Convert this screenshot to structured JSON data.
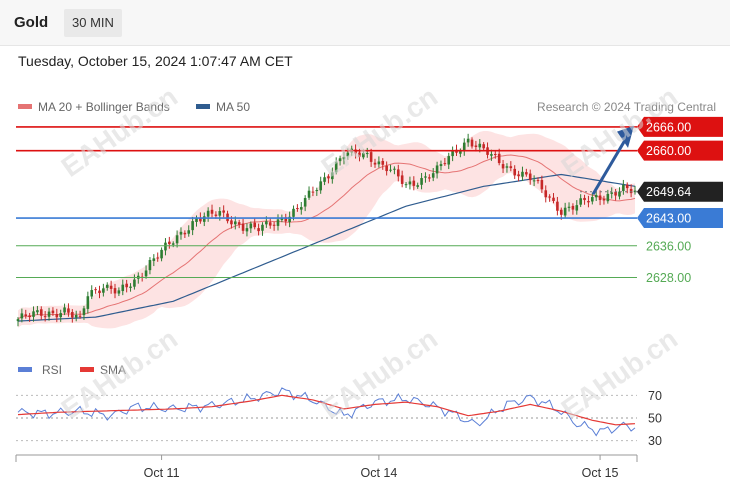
{
  "header": {
    "symbol": "Gold",
    "timeframe": "30 MIN"
  },
  "datetime": "Tuesday, October 15, 2024 1:07:47 AM CET",
  "copyright": "Research © 2024 Trading Central",
  "watermark": "EAHub.cn",
  "colors": {
    "bull": "#2e7d32",
    "bear": "#c62828",
    "ma20": "#e57373",
    "band": "#fde3e3",
    "ma50": "#2f5c8f",
    "resistance": "#dd1111",
    "support": "#3a7bd5",
    "target": "#55aa55",
    "price_label": "#222222",
    "rsi": "#5b7fd6",
    "sma": "#e53935"
  },
  "chart_data": [
    {
      "type": "candlestick",
      "legend": [
        {
          "name": "MA 20 + Bollinger Bands",
          "color": "#e57373"
        },
        {
          "name": "MA 50",
          "color": "#2f5c8f"
        }
      ],
      "ylim": [
        2614,
        2669
      ],
      "x_ticks": [
        {
          "label": "Oct 11",
          "index": 37
        },
        {
          "label": "Oct 14",
          "index": 93
        },
        {
          "label": "Oct 15",
          "index": 150
        }
      ],
      "levels": [
        {
          "value": 2666.0,
          "label": "2666.00",
          "kind": "resistance"
        },
        {
          "value": 2660.0,
          "label": "2660.00",
          "kind": "resistance"
        },
        {
          "value": 2649.64,
          "label": "2649.64",
          "kind": "price"
        },
        {
          "value": 2643.0,
          "label": "2643.00",
          "kind": "support"
        },
        {
          "value": 2636.0,
          "label": "2636.00",
          "kind": "target"
        },
        {
          "value": 2628.0,
          "label": "2628.00",
          "kind": "target"
        }
      ],
      "anchors": [
        [
          0,
          2617.5
        ],
        [
          6,
          2619
        ],
        [
          12,
          2619.5
        ],
        [
          16,
          2617
        ],
        [
          18,
          2624
        ],
        [
          22,
          2626
        ],
        [
          26,
          2624
        ],
        [
          30,
          2627
        ],
        [
          34,
          2632
        ],
        [
          40,
          2637
        ],
        [
          46,
          2643
        ],
        [
          52,
          2644
        ],
        [
          58,
          2641
        ],
        [
          62,
          2640
        ],
        [
          66,
          2642
        ],
        [
          72,
          2645
        ],
        [
          78,
          2652
        ],
        [
          84,
          2659
        ],
        [
          90,
          2659
        ],
        [
          96,
          2655
        ],
        [
          100,
          2651
        ],
        [
          104,
          2653
        ],
        [
          108,
          2655
        ],
        [
          112,
          2659
        ],
        [
          116,
          2663
        ],
        [
          120,
          2660
        ],
        [
          124,
          2657
        ],
        [
          128,
          2655
        ],
        [
          132,
          2653
        ],
        [
          136,
          2649
        ],
        [
          140,
          2645
        ],
        [
          144,
          2646
        ],
        [
          148,
          2648
        ],
        [
          152,
          2649
        ],
        [
          156,
          2650
        ],
        [
          159,
          2649.5
        ]
      ],
      "ma50": [
        [
          0,
          2617
        ],
        [
          20,
          2618
        ],
        [
          40,
          2622
        ],
        [
          60,
          2630
        ],
        [
          80,
          2638
        ],
        [
          100,
          2646
        ],
        [
          120,
          2651
        ],
        [
          140,
          2654
        ],
        [
          159,
          2651
        ]
      ]
    },
    {
      "type": "line",
      "series": [
        {
          "name": "RSI",
          "color": "#5b7fd6"
        },
        {
          "name": "SMA",
          "color": "#e53935"
        }
      ],
      "ylim": [
        20,
        80
      ],
      "yticks": [
        70,
        50,
        30
      ],
      "rsi": [
        [
          0,
          55
        ],
        [
          8,
          54
        ],
        [
          16,
          56
        ],
        [
          24,
          52
        ],
        [
          30,
          60
        ],
        [
          40,
          58
        ],
        [
          50,
          61
        ],
        [
          60,
          67
        ],
        [
          68,
          74
        ],
        [
          76,
          66
        ],
        [
          84,
          52
        ],
        [
          92,
          64
        ],
        [
          100,
          67
        ],
        [
          106,
          62
        ],
        [
          112,
          54
        ],
        [
          118,
          44
        ],
        [
          126,
          62
        ],
        [
          132,
          68
        ],
        [
          138,
          60
        ],
        [
          144,
          45
        ],
        [
          150,
          38
        ],
        [
          156,
          43
        ],
        [
          159,
          42
        ]
      ],
      "sma": [
        [
          0,
          53
        ],
        [
          10,
          55
        ],
        [
          20,
          56
        ],
        [
          30,
          57
        ],
        [
          40,
          58
        ],
        [
          50,
          60
        ],
        [
          60,
          65
        ],
        [
          68,
          70
        ],
        [
          76,
          66
        ],
        [
          84,
          58
        ],
        [
          92,
          62
        ],
        [
          100,
          64
        ],
        [
          108,
          60
        ],
        [
          116,
          52
        ],
        [
          124,
          56
        ],
        [
          132,
          62
        ],
        [
          140,
          56
        ],
        [
          148,
          48
        ],
        [
          154,
          44
        ],
        [
          159,
          45
        ]
      ]
    }
  ]
}
